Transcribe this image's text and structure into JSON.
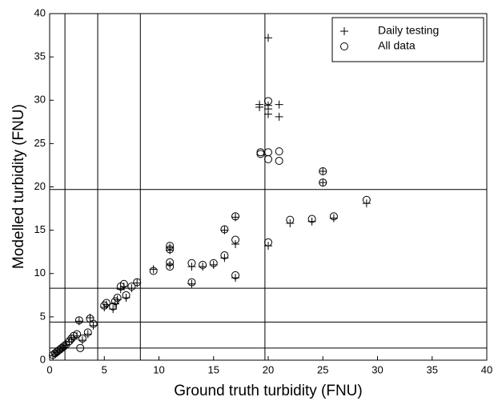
{
  "chart_data": {
    "type": "scatter",
    "x_label": "Ground truth turbidity (FNU)",
    "y_label": "Modelled turbidity (FNU)",
    "xlim": [
      0,
      40
    ],
    "ylim": [
      0,
      40
    ],
    "xticks": [
      0,
      5,
      10,
      15,
      20,
      25,
      30,
      35,
      40
    ],
    "yticks": [
      0,
      5,
      10,
      15,
      20,
      25,
      30,
      35,
      40
    ],
    "reference_lines": [
      1.4,
      4.4,
      8.3,
      19.7
    ],
    "legend": "upper right",
    "series": [
      {
        "name": "Daily testing",
        "marker": "+",
        "color": "#000000",
        "x": [
          0.3,
          0.5,
          0.7,
          0.9,
          1.1,
          1.3,
          1.5,
          1.8,
          2.0,
          2.2,
          2.5,
          2.7,
          3.0,
          3.5,
          3.7,
          4.0,
          5.0,
          5.2,
          5.8,
          6.0,
          6.2,
          6.5,
          6.8,
          7.0,
          7.5,
          8.0,
          9.5,
          11,
          11,
          11,
          13,
          13,
          14,
          15,
          16,
          16,
          17,
          17,
          17,
          19.2,
          19.2,
          20,
          20,
          20,
          20,
          21,
          21,
          20,
          22,
          24,
          25,
          25,
          26,
          29
        ],
        "y": [
          0.5,
          0.7,
          0.9,
          1.1,
          1.3,
          1.5,
          1.7,
          2.1,
          2.4,
          2.6,
          2.8,
          4.5,
          2.3,
          3.0,
          4.9,
          4.0,
          6.1,
          6.4,
          5.9,
          6.5,
          7.0,
          8.2,
          8.5,
          7.2,
          8.3,
          8.9,
          10.5,
          13.0,
          12.7,
          11.0,
          10.8,
          8.8,
          10.8,
          11.0,
          11.8,
          15.0,
          16.5,
          13.4,
          9.5,
          29.5,
          29.2,
          37.2,
          29.4,
          28.4,
          29.0,
          29.5,
          28.1,
          13.2,
          15.8,
          16.0,
          21.8,
          20.5,
          16.4,
          18.1
        ]
      },
      {
        "name": "All data",
        "marker": "o",
        "color": "#000000",
        "x": [
          0.3,
          0.5,
          0.7,
          0.9,
          1.1,
          1.3,
          1.5,
          1.8,
          2.0,
          2.2,
          2.5,
          2.7,
          2.8,
          3.0,
          3.5,
          3.7,
          4.0,
          5.0,
          5.2,
          5.8,
          6.0,
          6.2,
          6.5,
          6.8,
          7.0,
          7.5,
          8.0,
          9.5,
          11,
          11,
          11,
          11,
          13,
          13,
          14,
          15,
          16,
          16,
          17,
          17,
          17,
          19.3,
          19.3,
          20,
          20,
          20,
          21,
          21,
          20,
          22,
          24,
          25,
          25,
          26,
          29
        ],
        "y": [
          0.6,
          0.8,
          1.0,
          1.2,
          1.4,
          1.6,
          1.8,
          2.2,
          2.5,
          2.8,
          3.0,
          4.6,
          1.4,
          2.5,
          3.2,
          4.8,
          4.2,
          6.3,
          6.6,
          6.2,
          6.8,
          7.2,
          8.5,
          8.8,
          7.5,
          8.5,
          9.0,
          10.3,
          13.2,
          12.8,
          11.3,
          10.8,
          11.2,
          9.0,
          11.0,
          11.2,
          12.1,
          15.1,
          16.6,
          13.9,
          9.8,
          24.0,
          23.8,
          29.9,
          24.0,
          23.2,
          24.1,
          23.0,
          13.6,
          16.2,
          16.3,
          21.8,
          20.5,
          16.6,
          18.5
        ]
      }
    ]
  }
}
